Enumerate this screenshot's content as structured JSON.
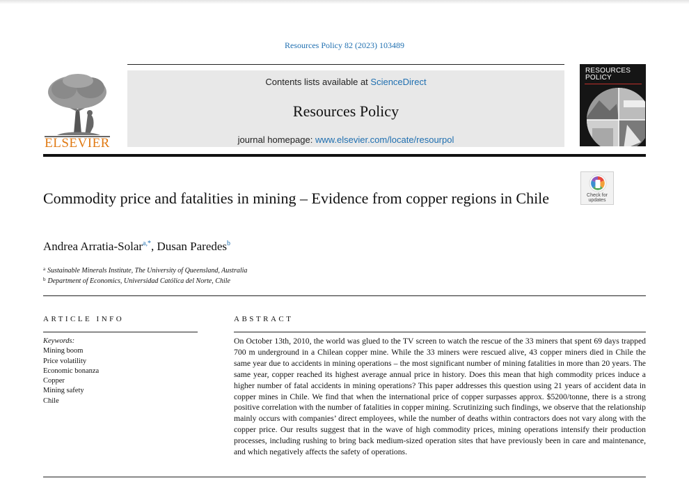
{
  "citation": "Resources Policy 82 (2023) 103489",
  "header": {
    "publisher": "ELSEVIER",
    "contents_prefix": "Contents lists available at ",
    "contents_link": "ScienceDirect",
    "journal_name": "Resources Policy",
    "homepage_prefix": "journal homepage: ",
    "homepage_link": "www.elsevier.com/locate/resourpol",
    "cover_title": "RESOURCES POLICY"
  },
  "check_updates": "Check for updates",
  "article": {
    "title": "Commodity price and fatalities in mining – Evidence from copper regions in Chile",
    "authors": [
      {
        "name": "Andrea Arratia-Solar",
        "marks": "a,*"
      },
      {
        "name": "Dusan Paredes",
        "marks": "b"
      }
    ],
    "author_separator": ", ",
    "affiliations": [
      {
        "mark": "a",
        "text": "Sustainable Minerals Institute, The University of Queensland, Australia"
      },
      {
        "mark": "b",
        "text": "Department of Economics, Universidad Católica del Norte, Chile"
      }
    ]
  },
  "article_info": {
    "heading": "ARTICLE INFO",
    "keywords_label": "Keywords:",
    "keywords": [
      "Mining boom",
      "Price volatility",
      "Economic bonanza",
      "Copper",
      "Mining safety",
      "Chile"
    ]
  },
  "abstract": {
    "heading": "ABSTRACT",
    "text": "On October 13th, 2010, the world was glued to the TV screen to watch the rescue of the 33 miners that spent 69 days trapped 700 m underground in a Chilean copper mine. While the 33 miners were rescued alive, 43 copper miners died in Chile the same year due to accidents in mining operations – the most significant number of mining fatalities in more than 20 years. The same year, copper reached its highest average annual price in history. Does this mean that high commodity prices induce a higher number of fatal accidents in mining operations? This paper addresses this question using 21 years of accident data in copper mines in Chile. We find that when the inter­national price of copper surpasses approx. $5200/tonne, there is a strong positive correlation with the number of fatalities in copper mining. Scrutinizing such findings, we observe that the relationship mainly occurs with companies’ direct employees, while the number of deaths within contractors does not vary along with the copper price. Our results suggest that in the wave of high commodity prices, mining operations intensify their pro­duction processes, including rushing to bring back medium-sized operation sites that have previously been in care and maintenance, and which negatively affects the safety of operations."
  },
  "colors": {
    "link": "#1f6fb0",
    "elsevier_orange": "#e07a14",
    "banner_gray": "#e8e8e8"
  }
}
